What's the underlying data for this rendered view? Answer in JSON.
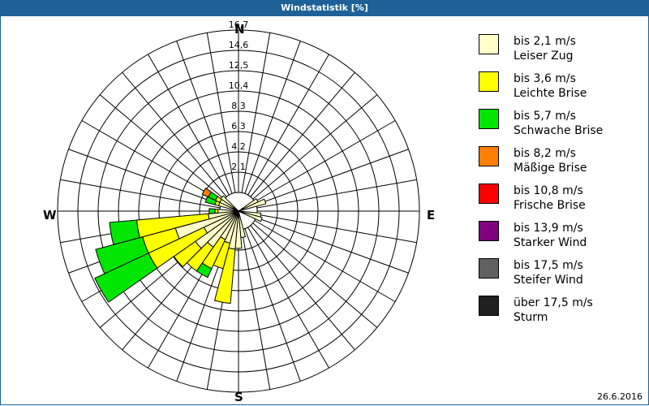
{
  "title": "Windstatistik [%]",
  "date": "26.6.2016",
  "compass": {
    "n": "N",
    "e": "E",
    "s": "S",
    "w": "W"
  },
  "legend": [
    {
      "range": "bis 2,1 m/s",
      "name": "Leiser Zug",
      "color": "#ffffc8"
    },
    {
      "range": "bis 3,6 m/s",
      "name": "Leichte Brise",
      "color": "#ffff00"
    },
    {
      "range": "bis 5,7 m/s",
      "name": "Schwache Brise",
      "color": "#00e600"
    },
    {
      "range": "bis 8,2 m/s",
      "name": "Mäßige Brise",
      "color": "#ff8000"
    },
    {
      "range": "bis 10,8 m/s",
      "name": "Frische Brise",
      "color": "#ff0000"
    },
    {
      "range": "bis 13,9 m/s",
      "name": "Starker Wind",
      "color": "#800080"
    },
    {
      "range": "bis 17,5 m/s",
      "name": "Steifer Wind",
      "color": "#606060"
    },
    {
      "range": "über 17,5 m/s",
      "name": "Sturm",
      "color": "#202020"
    }
  ],
  "chart_data": {
    "type": "polar-bar (wind rose)",
    "title": "Windstatistik [%]",
    "radial_ticks": [
      "2,1",
      "4,2",
      "6,3",
      "8,3",
      "10,4",
      "12,5",
      "14,6",
      "16,7"
    ],
    "radial_max": 16.7,
    "sector_width_deg": 10,
    "series_names": [
      "Leiser Zug",
      "Leichte Brise",
      "Schwache Brise",
      "Mäßige Brise"
    ],
    "sectors": [
      {
        "bearing": 60,
        "cumulative": [
          0.3
        ]
      },
      {
        "bearing": 70,
        "cumulative": [
          1.0
        ]
      },
      {
        "bearing": 100,
        "cumulative": [
          0.4
        ]
      },
      {
        "bearing": 110,
        "cumulative": [
          0.6
        ]
      },
      {
        "bearing": 170,
        "cumulative": [
          0.8
        ]
      },
      {
        "bearing": 180,
        "cumulative": [
          1.9
        ]
      },
      {
        "bearing": 190,
        "cumulative": [
          2.0,
          7.6
        ]
      },
      {
        "bearing": 200,
        "cumulative": [
          1.5,
          4.2
        ]
      },
      {
        "bearing": 210,
        "cumulative": [
          1.3,
          4.6,
          5.6
        ]
      },
      {
        "bearing": 220,
        "cumulative": [
          2.6,
          5.6
        ]
      },
      {
        "bearing": 230,
        "cumulative": [
          3.5,
          6.2
        ]
      },
      {
        "bearing": 240,
        "cumulative": [
          2.0,
          8.3,
          14.4
        ]
      },
      {
        "bearing": 250,
        "cumulative": [
          4.8,
          8.3,
          13.3
        ]
      },
      {
        "bearing": 260,
        "cumulative": [
          1.2,
          8.6,
          11.4
        ]
      },
      {
        "bearing": 270,
        "cumulative": [
          0.2,
          0.5,
          1.1
        ]
      },
      {
        "bearing": 290,
        "cumulative": [
          0.2,
          0.6,
          1.6
        ]
      },
      {
        "bearing": 300,
        "cumulative": [
          0.2,
          0.7,
          1.5,
          2.2
        ]
      },
      {
        "bearing": 310,
        "cumulative": [
          0.3
        ]
      }
    ]
  }
}
